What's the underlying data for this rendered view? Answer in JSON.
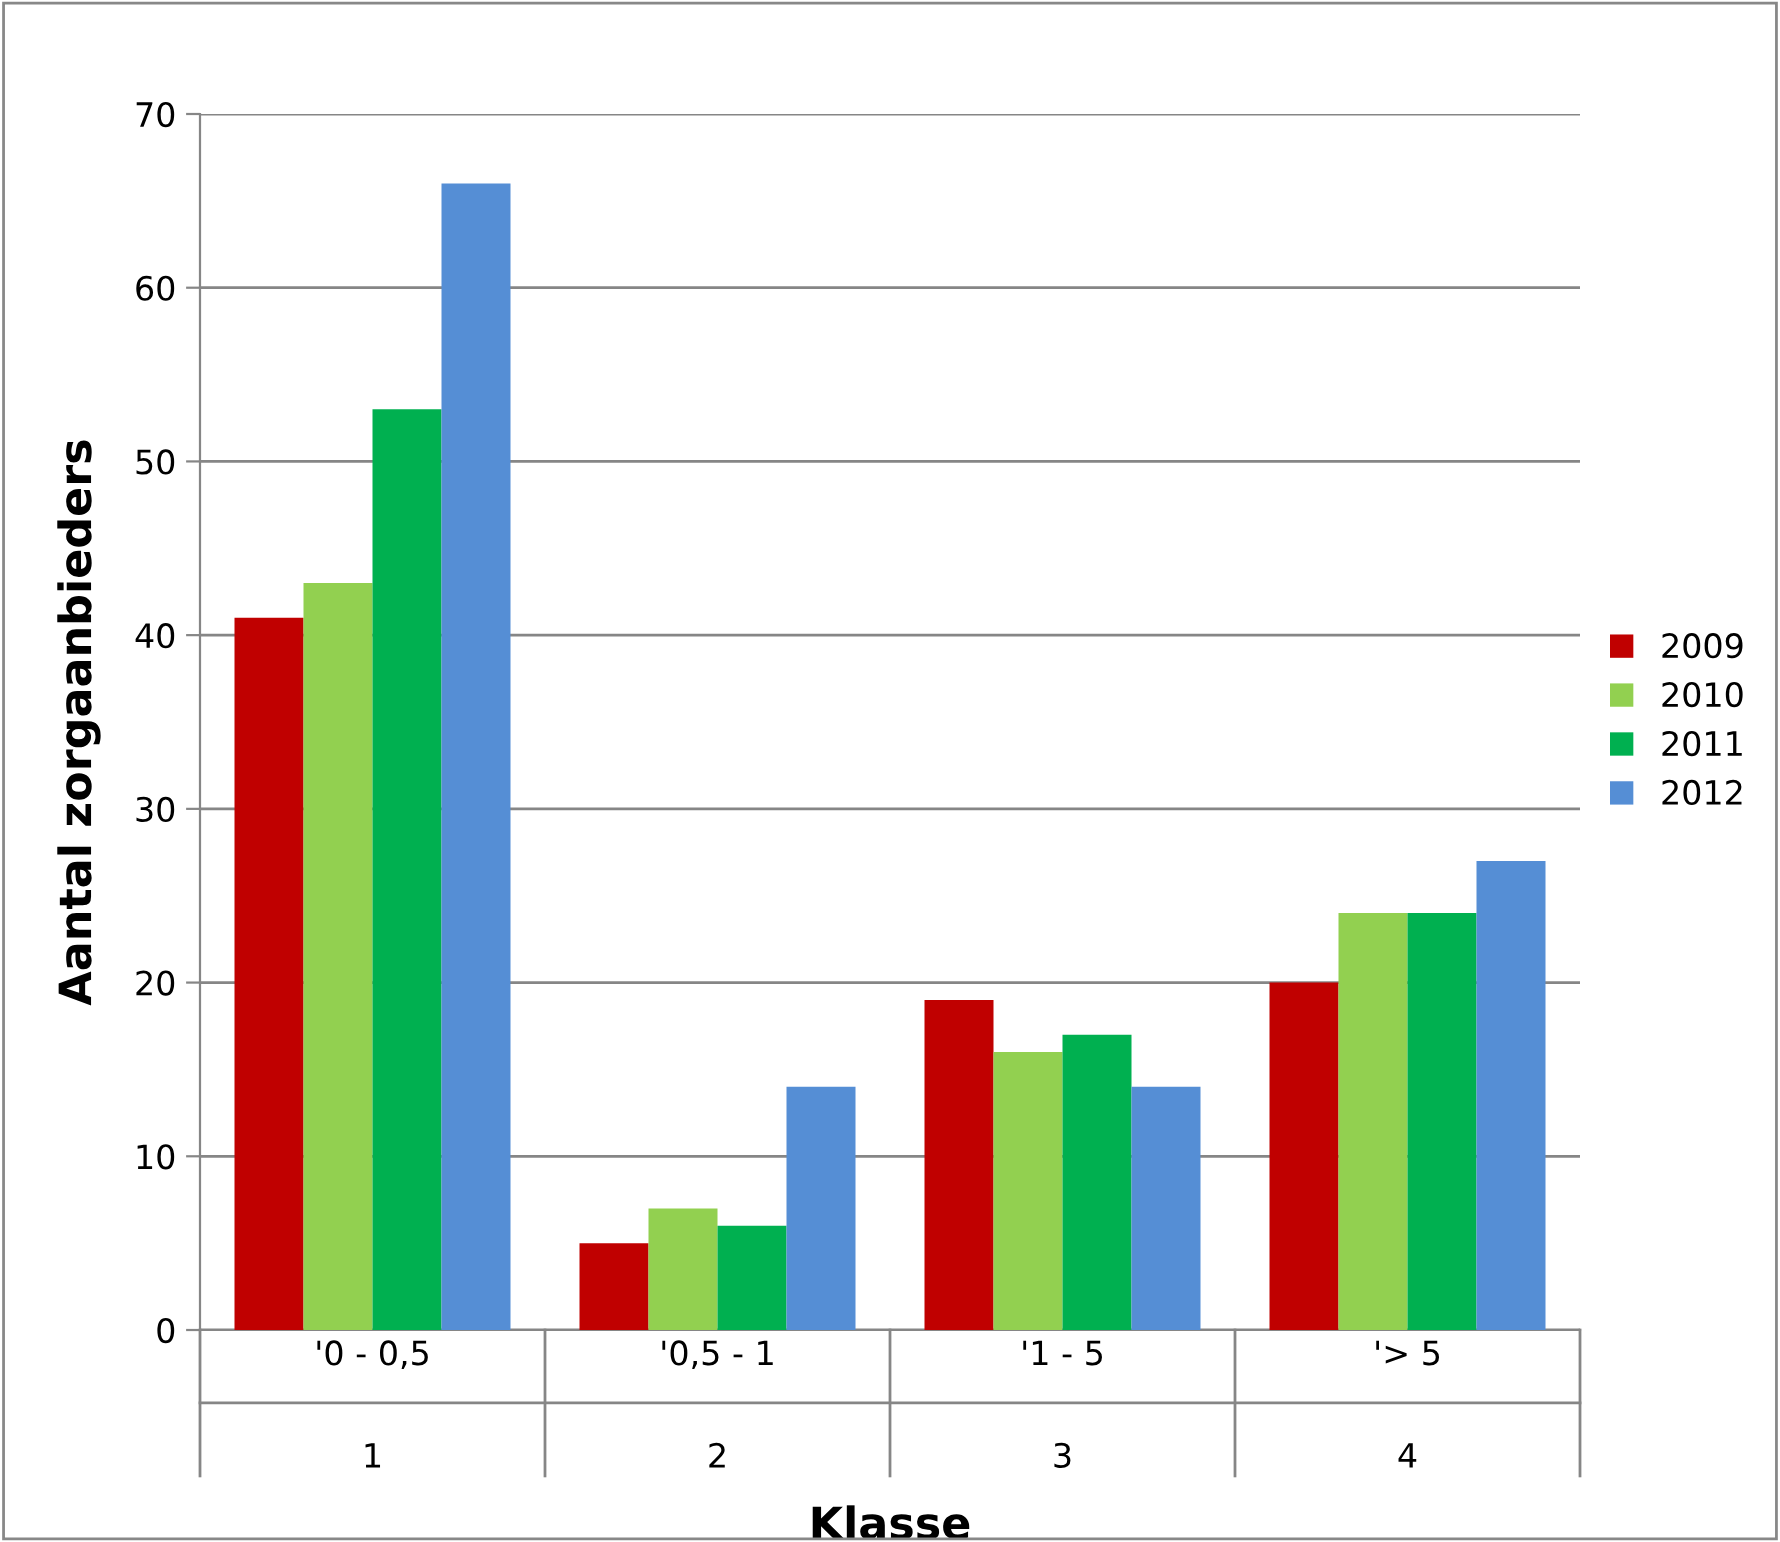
{
  "chart_data": {
    "type": "bar",
    "xlabel": "Klasse",
    "ylabel": "Aantal zorgaanbieders",
    "categories": [
      "'0 - 0,5\n1",
      "'0,5 - 1\n2",
      "'1 - 5\n3",
      "'> 5\n4"
    ],
    "series": [
      {
        "name": "2009",
        "color": "#c00000",
        "values": [
          41,
          5,
          19,
          20
        ]
      },
      {
        "name": "2010",
        "color": "#92d050",
        "values": [
          43,
          7,
          16,
          24
        ]
      },
      {
        "name": "2011",
        "color": "#00b050",
        "values": [
          53,
          6,
          17,
          24
        ]
      },
      {
        "name": "2012",
        "color": "#558ed5",
        "values": [
          66,
          14,
          14,
          27
        ]
      }
    ],
    "ylim": [
      0,
      70
    ],
    "yticks": [
      0,
      10,
      20,
      30,
      40,
      50,
      60,
      70
    ],
    "grid": "y",
    "legend": "right"
  }
}
